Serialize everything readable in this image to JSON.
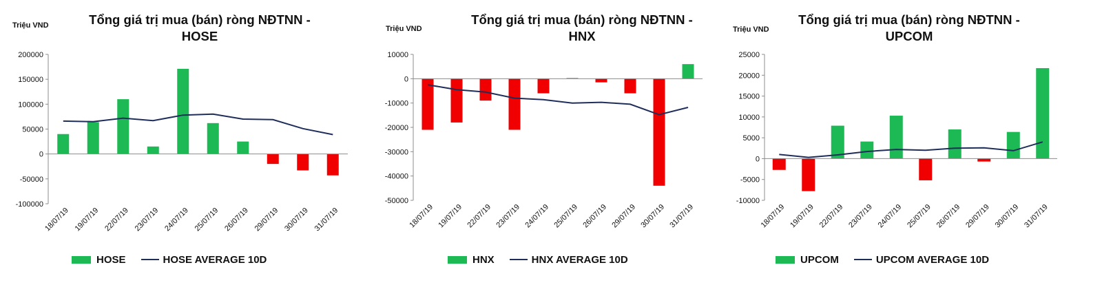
{
  "colors": {
    "positive": "#1db954",
    "negative": "#f00000",
    "average_line": "#1f2d5a",
    "axis": "#8c8c8c"
  },
  "chart_data": [
    {
      "type": "bar",
      "unit_label": "Triệu VND",
      "title_line1": "Tổng giá trị mua (bán) ròng NĐTNN -",
      "title_line2": "HOSE",
      "categories": [
        "18/07/19",
        "19/07/19",
        "22/07/19",
        "23/07/19",
        "24/07/19",
        "25/07/19",
        "26/07/19",
        "29/07/19",
        "30/07/19",
        "31/07/19"
      ],
      "ylim": [
        -100000,
        200000
      ],
      "yticks": [
        "200000",
        "150000",
        "100000",
        "50000",
        "0",
        "-50000",
        "-100000"
      ],
      "series": [
        {
          "name": "HOSE",
          "kind": "bar",
          "values": [
            40000,
            64000,
            110000,
            15000,
            171000,
            62000,
            25000,
            -20000,
            -33000,
            -43000
          ]
        },
        {
          "name": "HOSE AVERAGE 10D",
          "kind": "line",
          "values": [
            66000,
            65000,
            72000,
            67000,
            78000,
            80000,
            70000,
            69000,
            51000,
            39000
          ]
        }
      ],
      "legend": {
        "bar_label": "HOSE",
        "line_label": "HOSE AVERAGE 10D"
      }
    },
    {
      "type": "bar",
      "unit_label": "Triệu VND",
      "title_line1": "Tổng giá trị mua (bán) ròng NĐTNN -",
      "title_line2": "HNX",
      "categories": [
        "18/07/19",
        "19/07/19",
        "22/07/19",
        "23/07/19",
        "24/07/19",
        "25/07/19",
        "26/07/19",
        "29/07/19",
        "30/07/19",
        "31/07/19"
      ],
      "ylim": [
        -50000,
        10000
      ],
      "yticks": [
        "10000",
        "0",
        "-10000",
        "-20000",
        "-30000",
        "-40000",
        "-50000"
      ],
      "series": [
        {
          "name": "HNX",
          "kind": "bar",
          "values": [
            -21000,
            -18000,
            -9000,
            -21000,
            -6000,
            300,
            -1500,
            -6000,
            -44000,
            6000
          ]
        },
        {
          "name": "HNX AVERAGE 10D",
          "kind": "line",
          "values": [
            -2500,
            -4500,
            -5500,
            -8000,
            -8600,
            -10000,
            -9700,
            -10500,
            -14800,
            -11800
          ]
        }
      ],
      "legend": {
        "bar_label": "HNX",
        "line_label": "HNX AVERAGE 10D"
      }
    },
    {
      "type": "bar",
      "unit_label": "Triệu VND",
      "title_line1": "Tổng giá trị mua (bán) ròng NĐTNN -",
      "title_line2": "UPCOM",
      "categories": [
        "18/07/19",
        "19/07/19",
        "22/07/19",
        "23/07/19",
        "24/07/19",
        "25/07/19",
        "26/07/19",
        "29/07/19",
        "30/07/19",
        "31/07/19"
      ],
      "ylim": [
        -10000,
        25000
      ],
      "yticks": [
        "25000",
        "20000",
        "15000",
        "10000",
        "5000",
        "0",
        "-5000",
        "-10000"
      ],
      "series": [
        {
          "name": "UPCOM",
          "kind": "bar",
          "values": [
            -2700,
            -7800,
            7900,
            4100,
            10300,
            -5200,
            7000,
            -700,
            6400,
            21700
          ]
        },
        {
          "name": "UPCOM AVERAGE 10D",
          "kind": "line",
          "values": [
            1000,
            300,
            900,
            1700,
            2200,
            2000,
            2500,
            2600,
            1900,
            4000
          ]
        }
      ],
      "legend": {
        "bar_label": "UPCOM",
        "line_label": "UPCOM AVERAGE 10D"
      }
    }
  ]
}
